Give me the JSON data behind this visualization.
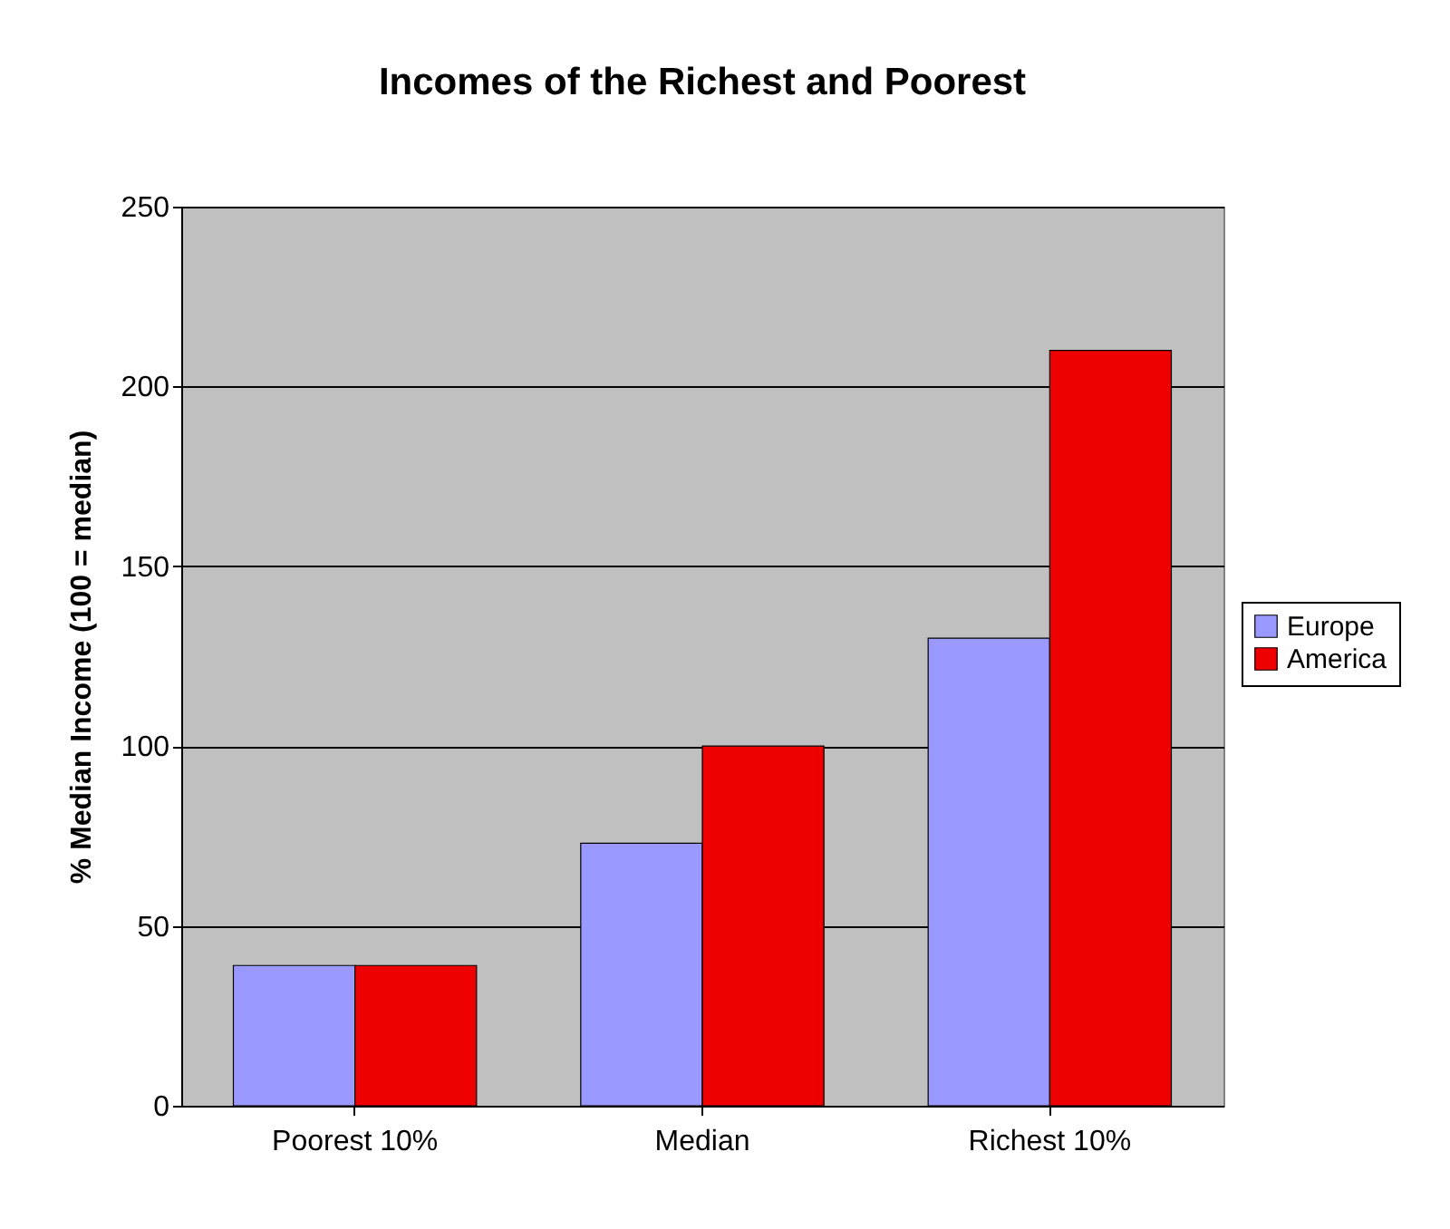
{
  "chart_data": {
    "type": "bar",
    "title": "Incomes of the Richest and Poorest",
    "ylabel": "% Median Income (100 = median)",
    "categories": [
      "Poorest 10%",
      "Median",
      "Richest 10%"
    ],
    "series": [
      {
        "name": "Europe",
        "color": "#9999ff",
        "values": [
          39,
          73,
          130
        ]
      },
      {
        "name": "America",
        "color": "#ee0000",
        "values": [
          39,
          100,
          210
        ]
      }
    ],
    "ylim": [
      0,
      250
    ],
    "yticks": [
      0,
      50,
      100,
      150,
      200,
      250
    ],
    "grid": "y",
    "legend": "right"
  }
}
